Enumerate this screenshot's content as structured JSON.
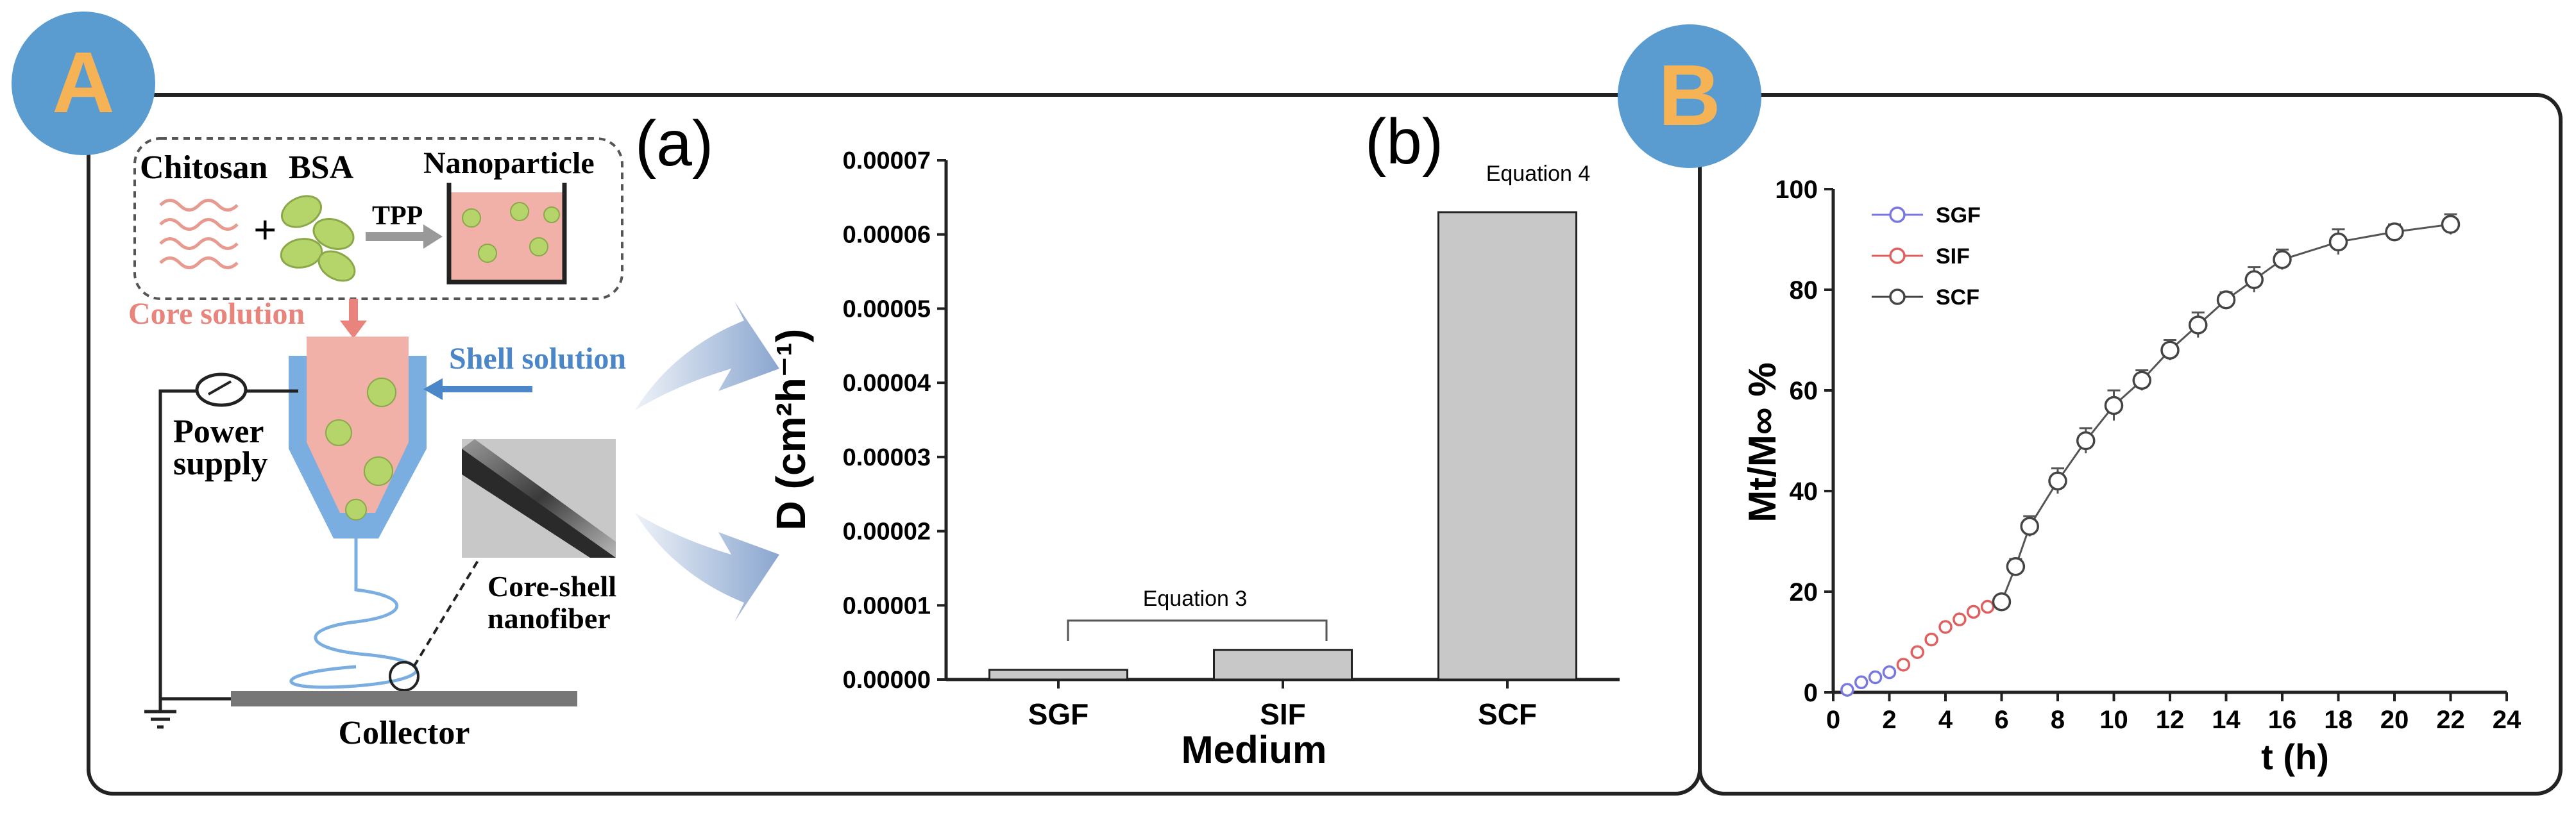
{
  "badges": {
    "a": "A",
    "b": "B"
  },
  "schematic": {
    "label": "(a)",
    "chitosan": "Chitosan",
    "bsa": "BSA",
    "plus": "+",
    "tpp": "TPP",
    "nanoparticle": "Nanoparticle",
    "core_solution": "Core solution",
    "shell_solution": "Shell solution",
    "power_line1": "Power",
    "power_line2": "supply",
    "fiber_line1": "Core-shell",
    "fiber_line2": "nanofiber",
    "collector": "Collector"
  },
  "colors": {
    "badge_fill": "#5a9bd0",
    "badge_text": "#f5b355",
    "core_pink": "#f1b0a8",
    "core_text": "#e8847c",
    "shell_blue": "#4a86c8",
    "nanoparticle_green": "#b5d56a",
    "bar_fill": "#c8c8c8",
    "sgf_series": "#7878e0",
    "sif_series": "#e06060",
    "scf_series": "#444444"
  },
  "icons": [
    "power-meter-icon",
    "ground-icon",
    "arrow-icon"
  ],
  "chart_data": [
    {
      "type": "bar",
      "label": "(b)",
      "categories": [
        "SGF",
        "SIF",
        "SCF"
      ],
      "values": [
        1.3e-06,
        4e-06,
        6.3e-05
      ],
      "xlabel": "Medium",
      "ylabel": "D (cm²h⁻¹)",
      "ylim": [
        0,
        7e-05
      ],
      "yticks": [
        "0.00000",
        "0.00001",
        "0.00002",
        "0.00003",
        "0.00004",
        "0.00005",
        "0.00006",
        "0.00007"
      ],
      "annotations": {
        "eq3": "Equation 3",
        "eq4": "Equation 4"
      },
      "grid": false
    },
    {
      "type": "line",
      "xlabel": "t (h)",
      "ylabel": "Mt/M∞ %",
      "xlim": [
        0,
        24
      ],
      "ylim": [
        0,
        100
      ],
      "xticks": [
        "0",
        "2",
        "4",
        "6",
        "8",
        "10",
        "12",
        "14",
        "16",
        "18",
        "20",
        "22",
        "24"
      ],
      "yticks": [
        "0",
        "20",
        "40",
        "60",
        "80",
        "100"
      ],
      "legend_position": "top-left",
      "grid": false,
      "series": [
        {
          "name": "SGF",
          "x": [
            0.5,
            1,
            1.5,
            2
          ],
          "y": [
            0.5,
            2,
            3,
            4
          ]
        },
        {
          "name": "SIF",
          "x": [
            2.5,
            3,
            3.5,
            4,
            4.5,
            5,
            5.5,
            6
          ],
          "y": [
            5.5,
            8,
            10.5,
            13,
            14.5,
            16,
            17,
            18
          ]
        },
        {
          "name": "SCF",
          "x": [
            6,
            6.5,
            7,
            8,
            9,
            10,
            11,
            12,
            13,
            14,
            15,
            16,
            18,
            20,
            22
          ],
          "y": [
            18,
            25,
            33,
            42,
            50,
            57,
            62,
            68,
            73,
            78,
            82,
            86,
            89.5,
            91.5,
            93
          ],
          "err": [
            0,
            1.5,
            2,
            2.5,
            2.5,
            3,
            2,
            2,
            2.5,
            1.5,
            2.5,
            2,
            2.5,
            1.5,
            2
          ]
        }
      ]
    }
  ]
}
